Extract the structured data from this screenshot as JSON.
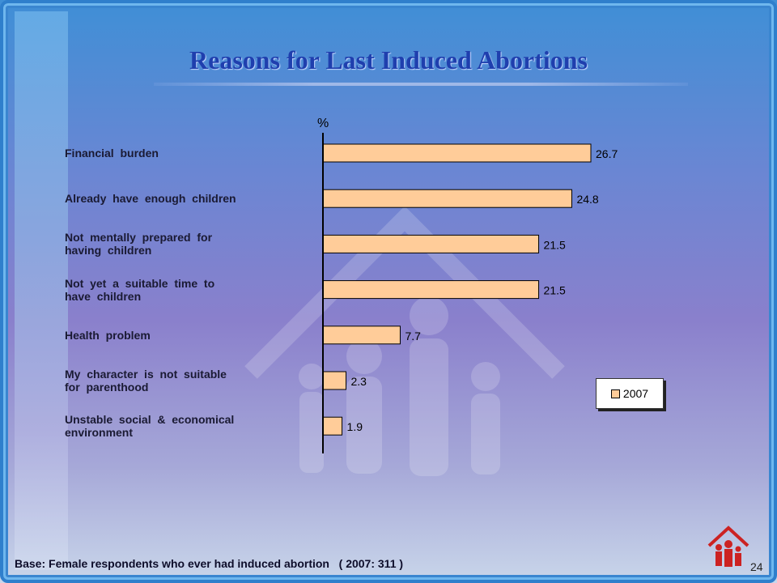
{
  "slide": {
    "title": "Reasons for Last Induced Abortions",
    "footnote": "Base: Female respondents who ever had induced abortion   ( 2007: 311 )",
    "page_number": "24"
  },
  "chart_data": {
    "type": "bar",
    "orientation": "horizontal",
    "categories": [
      "Financial  burden",
      "Already  have  enough  children",
      "Not  mentally  prepared  for\nhaving  children",
      "Not  yet  a  suitable  time  to\nhave  children",
      "Health  problem",
      "My  character  is  not  suitable\nfor  parenthood",
      "Unstable  social  &  economical\nenvironment"
    ],
    "series": [
      {
        "name": "2007",
        "values": [
          26.7,
          24.8,
          21.5,
          21.5,
          7.7,
          2.3,
          1.9
        ],
        "color": "#ffcc99"
      }
    ],
    "data_labels": [
      "26.7",
      "24.8",
      "21.5",
      "21.5",
      "7.7",
      "2.3",
      "1.9"
    ],
    "xlabel": "%",
    "xlim": [
      0,
      30
    ],
    "grid": false,
    "legend_position": "right"
  }
}
